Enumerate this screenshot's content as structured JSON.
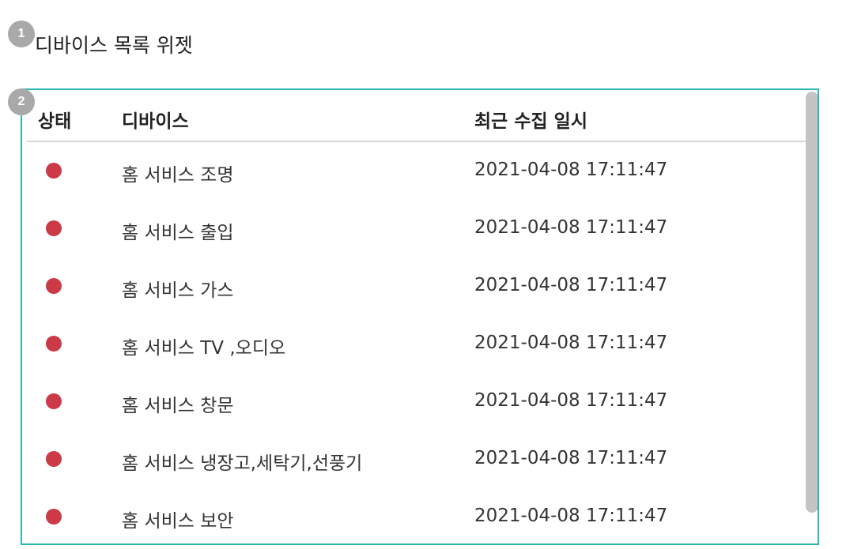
{
  "badges": {
    "first": "1",
    "second": "2"
  },
  "widget": {
    "title": "디바이스 목록 위젯"
  },
  "table": {
    "headers": {
      "status": "상태",
      "device": "디바이스",
      "time": "최근 수집 일시"
    },
    "rows": [
      {
        "device": "홈 서비스 조명",
        "time": "2021-04-08 17:11:47"
      },
      {
        "device": "홈 서비스 출입",
        "time": "2021-04-08 17:11:47"
      },
      {
        "device": "홈 서비스 가스",
        "time": "2021-04-08 17:11:47"
      },
      {
        "device": "홈 서비스 TV ,오디오",
        "time": "2021-04-08 17:11:47"
      },
      {
        "device": "홈 서비스 창문",
        "time": "2021-04-08 17:11:47"
      },
      {
        "device": "홈 서비스 냉장고,세탁기,선풍기",
        "time": "2021-04-08 17:11:47"
      },
      {
        "device": "홈 서비스 보안",
        "time": "2021-04-08 17:11:47"
      }
    ]
  },
  "colors": {
    "accent_border": "#2ab8b0",
    "status_dot": "#cc3a47",
    "badge": "#a9a9a9"
  }
}
